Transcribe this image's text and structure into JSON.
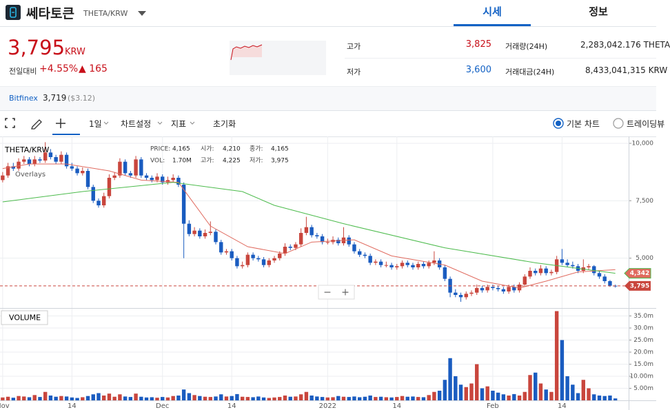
{
  "header": {
    "coin": "쎄타토큰",
    "pair": "THETA/KRW",
    "tabs": [
      "시세",
      "정보"
    ]
  },
  "ticker": {
    "price": "3,795",
    "currency": "KRW",
    "change_label": "전일대비",
    "change_pct": "+4.55%",
    "change_amt": "▲ 165",
    "stats": [
      {
        "label": "고가",
        "value": "3,825"
      },
      {
        "label": "저가",
        "value": "3,600"
      },
      {
        "label": "거래량(24H)",
        "value": "2,283,042.176 THETA"
      },
      {
        "label": "거래대금(24H)",
        "value": "8,433,041,315 KRW"
      }
    ]
  },
  "exchange": {
    "name": "Bitfinex",
    "price": "3,719",
    "usd": "($3.12)"
  },
  "toolbar": {
    "items": [
      "1일",
      "차트설정",
      "지표",
      "초기화"
    ],
    "chart_modes": [
      "기본 차트",
      "트레이딩뷰"
    ]
  },
  "chart_data": {
    "type": "candlestick",
    "title": "THETA/KRW",
    "overlay_label": "Overlays",
    "volume_label": "VOLUME",
    "zoom": [
      "−",
      "+"
    ],
    "info": [
      {
        "label": "PRICE:",
        "value": "4,165"
      },
      {
        "label": "시가:",
        "value": "4,210"
      },
      {
        "label": "종가:",
        "value": "4,165"
      },
      {
        "label": "VOL:",
        "value": "1.70M"
      },
      {
        "label": "고가:",
        "value": "4,225"
      },
      {
        "label": "저가:",
        "value": "3,975"
      }
    ],
    "up_color": "#c9463d",
    "down_color": "#1a5cc0",
    "grid": true,
    "xlim": [
      -0.5,
      117.5
    ],
    "xticks": [
      {
        "value": 0,
        "label": "Nov"
      },
      {
        "value": 13,
        "label": "14"
      },
      {
        "value": 30,
        "label": "Dec"
      },
      {
        "value": 43,
        "label": "14"
      },
      {
        "value": 61,
        "label": "2022"
      },
      {
        "value": 74,
        "label": "14"
      },
      {
        "value": 92,
        "label": "Feb"
      },
      {
        "value": 105,
        "label": "14"
      }
    ],
    "ylim": [
      2830,
      10300
    ],
    "yticks": [
      {
        "value": 5000,
        "label": "5,000"
      },
      {
        "value": 7500,
        "label": "7,500"
      },
      {
        "value": 10000,
        "label": "10,000"
      }
    ],
    "y2lim": [
      0,
      38
    ],
    "y2ticks": [
      {
        "value": 5,
        "label": "5.00m"
      },
      {
        "value": 10,
        "label": "10.00m"
      },
      {
        "value": 15,
        "label": "15.0m"
      },
      {
        "value": 20,
        "label": "20.0m"
      },
      {
        "value": 25,
        "label": "25.0m"
      },
      {
        "value": 30,
        "label": "30.0m"
      },
      {
        "value": 35,
        "label": "35.0m"
      }
    ],
    "price_tag": {
      "value": 3795,
      "label": "3,795"
    },
    "ma_tag": {
      "value": 4342,
      "label": "4,342"
    },
    "series": [
      {
        "color": "#e06a5e",
        "x": [
          0,
          5,
          12,
          20,
          26,
          33,
          39,
          46,
          53,
          58,
          66,
          73,
          78,
          83,
          90,
          97,
          102,
          108,
          115
        ],
        "values": [
          8900,
          9100,
          9100,
          8800,
          8400,
          8300,
          6400,
          5500,
          5200,
          5700,
          5800,
          5100,
          4900,
          4700,
          4000,
          3700,
          4000,
          4400,
          4500
        ]
      },
      {
        "color": "#4cbb4c",
        "x": [
          0,
          15,
          32,
          45,
          51,
          64,
          83,
          100,
          115
        ],
        "values": [
          7450,
          7900,
          8300,
          7900,
          7300,
          6500,
          5450,
          4800,
          4342
        ]
      }
    ],
    "ohlc": [
      [
        8400,
        8750,
        8300,
        8600
      ],
      [
        8600,
        9150,
        8500,
        9000
      ],
      [
        9000,
        9150,
        8800,
        8900
      ],
      [
        8900,
        9350,
        8800,
        9200
      ],
      [
        9200,
        9450,
        9100,
        9300
      ],
      [
        9300,
        9400,
        9000,
        9100
      ],
      [
        9100,
        9450,
        9000,
        9300
      ],
      [
        9300,
        9400,
        9150,
        9250
      ],
      [
        9250,
        10050,
        9150,
        9600
      ],
      [
        9600,
        9750,
        9300,
        9400
      ],
      [
        9400,
        9500,
        9100,
        9200
      ],
      [
        9200,
        9650,
        9100,
        9500
      ],
      [
        9500,
        9600,
        8900,
        9000
      ],
      [
        9000,
        9150,
        8800,
        8900
      ],
      [
        8900,
        9000,
        8600,
        8700
      ],
      [
        8700,
        8950,
        8600,
        8800
      ],
      [
        8800,
        8900,
        8000,
        8100
      ],
      [
        8100,
        8200,
        7400,
        7500
      ],
      [
        7500,
        7600,
        7200,
        7300
      ],
      [
        7300,
        7850,
        7200,
        7700
      ],
      [
        7700,
        8650,
        7600,
        8500
      ],
      [
        8500,
        8750,
        8400,
        8600
      ],
      [
        8600,
        9350,
        8500,
        9200
      ],
      [
        9200,
        9300,
        8600,
        8700
      ],
      [
        8700,
        8800,
        8500,
        8600
      ],
      [
        8600,
        9450,
        8500,
        9300
      ],
      [
        9300,
        9400,
        8500,
        8600
      ],
      [
        8600,
        8700,
        8400,
        8500
      ],
      [
        8500,
        8600,
        8300,
        8400
      ],
      [
        8400,
        8700,
        8300,
        8550
      ],
      [
        8550,
        8650,
        8200,
        8300
      ],
      [
        8300,
        8550,
        8200,
        8400
      ],
      [
        8400,
        8650,
        8300,
        8500
      ],
      [
        8500,
        8600,
        8100,
        8200
      ],
      [
        8200,
        8300,
        5000,
        6500
      ],
      [
        6500,
        6650,
        5950,
        6050
      ],
      [
        6050,
        6350,
        5950,
        6200
      ],
      [
        6200,
        6300,
        5850,
        5950
      ],
      [
        5950,
        6250,
        5850,
        6100
      ],
      [
        6100,
        6600,
        6000,
        6150
      ],
      [
        6150,
        6250,
        5600,
        5700
      ],
      [
        5700,
        5800,
        5150,
        5250
      ],
      [
        5250,
        5400,
        5150,
        5300
      ],
      [
        5300,
        5400,
        4900,
        5000
      ],
      [
        5000,
        5100,
        4550,
        4650
      ],
      [
        4650,
        4850,
        4550,
        4700
      ],
      [
        4700,
        5250,
        4600,
        5150
      ],
      [
        5150,
        5250,
        4900,
        5000
      ],
      [
        5000,
        5100,
        4850,
        4950
      ],
      [
        4950,
        5050,
        4600,
        4700
      ],
      [
        4700,
        5000,
        4600,
        4900
      ],
      [
        4900,
        5100,
        4800,
        5000
      ],
      [
        5000,
        5300,
        4900,
        5200
      ],
      [
        5200,
        5650,
        5100,
        5500
      ],
      [
        5500,
        5600,
        5350,
        5450
      ],
      [
        5450,
        5700,
        5350,
        5600
      ],
      [
        5600,
        6300,
        5500,
        6100
      ],
      [
        6100,
        6800,
        6000,
        6350
      ],
      [
        6350,
        6450,
        5900,
        6000
      ],
      [
        6000,
        6100,
        5850,
        5950
      ],
      [
        5950,
        6050,
        5600,
        5700
      ],
      [
        5700,
        5850,
        5600,
        5700
      ],
      [
        5700,
        5950,
        5600,
        5800
      ],
      [
        5800,
        5900,
        5550,
        5650
      ],
      [
        5650,
        6350,
        5550,
        5900
      ],
      [
        5900,
        6000,
        5500,
        5600
      ],
      [
        5600,
        5700,
        5200,
        5300
      ],
      [
        5300,
        5400,
        5050,
        5150
      ],
      [
        5150,
        5250,
        5000,
        5100
      ],
      [
        5100,
        5200,
        4700,
        4800
      ],
      [
        4800,
        4950,
        4700,
        4850
      ],
      [
        4850,
        4950,
        4600,
        4700
      ],
      [
        4700,
        4850,
        4600,
        4700
      ],
      [
        4700,
        4800,
        4500,
        4600
      ],
      [
        4600,
        4750,
        4500,
        4650
      ],
      [
        4650,
        4900,
        4550,
        4800
      ],
      [
        4800,
        4900,
        4600,
        4700
      ],
      [
        4700,
        4800,
        4500,
        4600
      ],
      [
        4600,
        4850,
        4500,
        4750
      ],
      [
        4750,
        4850,
        4550,
        4650
      ],
      [
        4650,
        4900,
        4550,
        4800
      ],
      [
        4800,
        5300,
        4700,
        4900
      ],
      [
        4900,
        5000,
        4500,
        4600
      ],
      [
        4600,
        4700,
        4000,
        4100
      ],
      [
        4100,
        4200,
        3300,
        3500
      ],
      [
        3500,
        3650,
        3300,
        3400
      ],
      [
        3400,
        3500,
        3100,
        3300
      ],
      [
        3300,
        3550,
        3200,
        3450
      ],
      [
        3450,
        3600,
        3350,
        3500
      ],
      [
        3500,
        3850,
        3400,
        3700
      ],
      [
        3700,
        3800,
        3500,
        3600
      ],
      [
        3600,
        3850,
        3500,
        3750
      ],
      [
        3750,
        3850,
        3600,
        3700
      ],
      [
        3700,
        3800,
        3550,
        3650
      ],
      [
        3650,
        3750,
        3450,
        3550
      ],
      [
        3550,
        3850,
        3450,
        3750
      ],
      [
        3750,
        3850,
        3500,
        3600
      ],
      [
        3600,
        3950,
        3500,
        3850
      ],
      [
        3850,
        4300,
        3750,
        4200
      ],
      [
        4200,
        4600,
        4100,
        4450
      ],
      [
        4450,
        4550,
        4250,
        4350
      ],
      [
        4350,
        4700,
        4250,
        4550
      ],
      [
        4550,
        4650,
        4250,
        4350
      ],
      [
        4350,
        4500,
        4250,
        4400
      ],
      [
        4400,
        5100,
        4300,
        4950
      ],
      [
        4950,
        5400,
        4700,
        4800
      ],
      [
        4800,
        4950,
        4600,
        4700
      ],
      [
        4700,
        4850,
        4550,
        4650
      ],
      [
        4650,
        4750,
        4350,
        4450
      ],
      [
        4450,
        4950,
        4350,
        4600
      ],
      [
        4600,
        4750,
        4500,
        4650
      ],
      [
        4650,
        4700,
        4250,
        4350
      ],
      [
        4350,
        4450,
        4100,
        4200
      ],
      [
        4200,
        4300,
        3900,
        4000
      ],
      [
        4000,
        4050,
        3750,
        3800
      ],
      [
        3800,
        3850,
        3720,
        3795
      ]
    ],
    "volume": [
      1.2,
      1.5,
      1.1,
      1.8,
      1.6,
      1.3,
      2.2,
      1.4,
      3.5,
      2.0,
      1.5,
      1.8,
      1.6,
      1.2,
      1.0,
      1.3,
      1.8,
      2.5,
      3.0,
      2.0,
      2.8,
      1.5,
      2.5,
      1.6,
      1.4,
      2.8,
      1.5,
      1.2,
      1.3,
      1.1,
      1.4,
      1.2,
      1.8,
      2.0,
      4.5,
      3.0,
      2.2,
      1.8,
      1.5,
      1.4,
      1.6,
      2.5,
      1.6,
      1.8,
      2.6,
      1.5,
      1.4,
      1.3,
      1.6,
      1.2,
      1.0,
      1.2,
      1.4,
      2.0,
      1.5,
      1.6,
      2.5,
      3.5,
      2.0,
      1.6,
      1.4,
      1.2,
      1.3,
      1.8,
      1.5,
      1.4,
      1.6,
      1.3,
      1.5,
      2.0,
      1.4,
      1.5,
      1.3,
      1.2,
      1.4,
      1.8,
      1.5,
      1.6,
      1.4,
      1.3,
      2.2,
      3.5,
      4.0,
      8.5,
      17.5,
      10.0,
      6.5,
      5.5,
      7.0,
      15.0,
      5.0,
      5.8,
      4.0,
      3.2,
      2.5,
      2.0,
      2.6,
      2.0,
      3.5,
      10.5,
      11.5,
      7.0,
      4.5,
      3.5,
      37.0,
      25.0,
      10.0,
      6.5,
      3.0,
      8.5,
      5.0,
      2.5,
      2.0,
      1.8,
      2.0,
      0.8
    ]
  }
}
